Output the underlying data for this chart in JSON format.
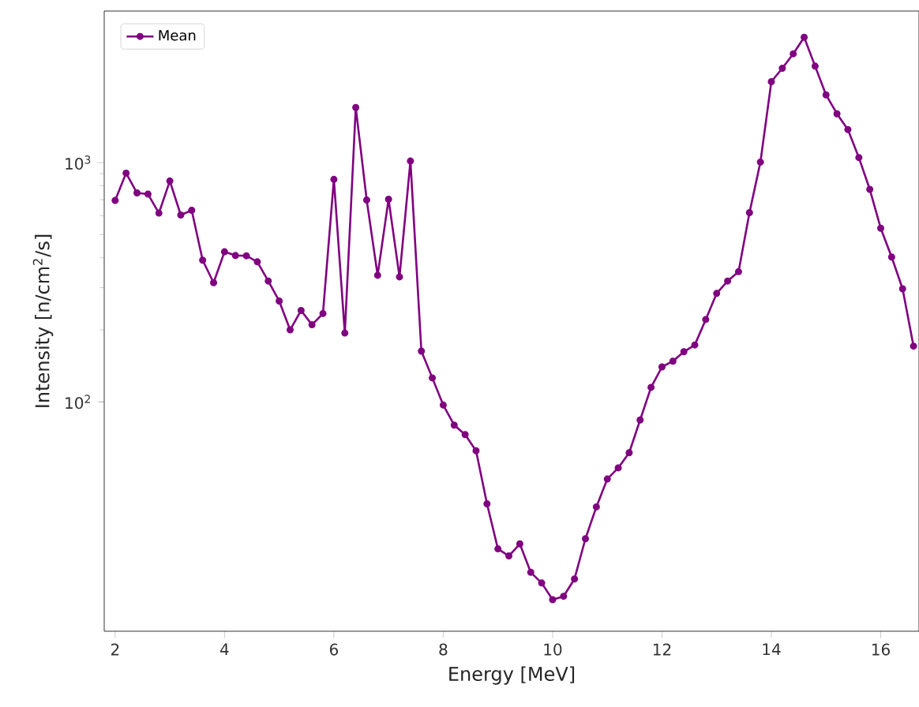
{
  "chart_data": {
    "type": "line",
    "xlabel": "Energy [MeV]",
    "ylabel": "Intensity [n/cm$^{2}$/s]",
    "x": [
      2.0,
      2.2,
      2.4,
      2.6,
      2.8,
      3.0,
      3.2,
      3.4,
      3.6,
      3.8,
      4.0,
      4.2,
      4.4,
      4.6,
      4.8,
      5.0,
      5.2,
      5.4,
      5.6,
      5.8,
      6.0,
      6.2,
      6.4,
      6.6,
      6.8,
      7.0,
      7.2,
      7.4,
      7.6,
      7.8,
      8.0,
      8.2,
      8.4,
      8.6,
      8.8,
      9.0,
      9.2,
      9.4,
      9.6,
      9.8,
      10.0,
      10.2,
      10.4,
      10.6,
      10.8,
      11.0,
      11.2,
      11.4,
      11.6,
      11.8,
      12.0,
      12.2,
      12.4,
      12.6,
      12.8,
      13.0,
      13.2,
      13.4,
      13.6,
      13.8,
      14.0,
      14.2,
      14.4,
      14.6,
      14.8,
      15.0,
      15.2,
      15.4,
      15.6,
      15.8,
      16.0,
      16.2,
      16.4,
      16.6
    ],
    "series": [
      {
        "name": "Mean",
        "color": "#800080",
        "values": [
          695,
          904,
          747,
          739,
          615,
          838,
          604,
          632,
          391,
          315,
          424,
          409,
          408,
          385,
          320,
          264,
          200,
          241,
          210,
          234,
          851,
          194,
          1700,
          698,
          338,
          703,
          333,
          1015,
          163,
          126,
          97,
          80,
          73,
          62.5,
          37.5,
          24.3,
          22.7,
          25.5,
          19.4,
          17.5,
          14.9,
          15.4,
          18.2,
          26.8,
          36.4,
          47.6,
          53,
          61.3,
          84,
          115,
          140,
          148,
          162,
          173,
          221,
          284,
          320,
          350,
          618,
          1005,
          2180,
          2480,
          2850,
          3340,
          2530,
          1920,
          1600,
          1375,
          1050,
          773,
          532,
          403,
          297,
          171
        ]
      }
    ],
    "xlim": [
      1.8,
      16.7
    ],
    "ylim": [
      11,
      4300
    ],
    "xticks": [
      2,
      4,
      6,
      8,
      10,
      12,
      14,
      16
    ],
    "yticks": [
      {
        "value": 100,
        "label": "10$^{2}$"
      },
      {
        "value": 1000,
        "label": "10$^{3}$"
      }
    ],
    "log": "y",
    "grid": false,
    "legend": "top left",
    "marker": "circle",
    "line_style": "solid"
  }
}
